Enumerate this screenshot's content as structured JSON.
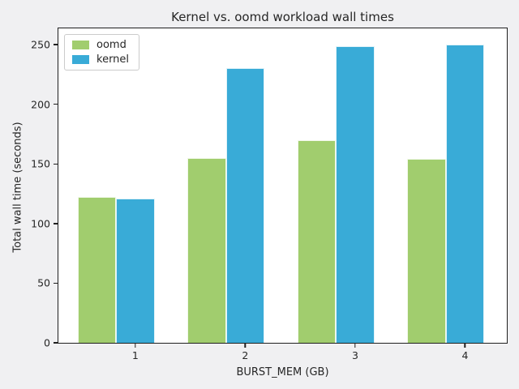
{
  "figure": {
    "background_color": "#f0f0f2",
    "plot_background_color": "#ffffff",
    "spine_color": "#1f1f1f",
    "text_color": "#262626"
  },
  "chart_data": {
    "type": "bar",
    "title": "Kernel vs. oomd workload wall times",
    "xlabel": "BURST_MEM (GB)",
    "ylabel": "Total wall time (seconds)",
    "categories": [
      "1",
      "2",
      "3",
      "4"
    ],
    "category_x": [
      1,
      2,
      3,
      4
    ],
    "series": [
      {
        "name": "oomd",
        "color": "#a1cd6e",
        "values": [
          122,
          155,
          170,
          154
        ]
      },
      {
        "name": "kernel",
        "color": "#39abd7",
        "values": [
          121,
          230,
          249,
          250
        ]
      }
    ],
    "yticks": [
      0,
      50,
      100,
      150,
      200,
      250
    ],
    "ylim": [
      0,
      263.6
    ],
    "xlim": [
      0.3,
      4.38
    ],
    "bar_width": 0.35,
    "grid": false,
    "legend_position": "upper left"
  }
}
